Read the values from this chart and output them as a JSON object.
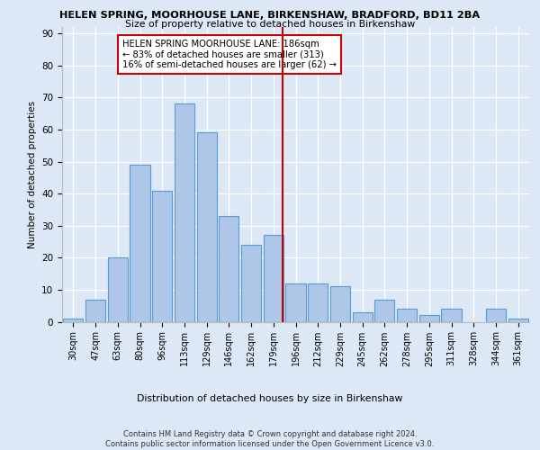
{
  "title1": "HELEN SPRING, MOORHOUSE LANE, BIRKENSHAW, BRADFORD, BD11 2BA",
  "title2": "Size of property relative to detached houses in Birkenshaw",
  "xlabel": "Distribution of detached houses by size in Birkenshaw",
  "ylabel": "Number of detached properties",
  "categories": [
    "30sqm",
    "47sqm",
    "63sqm",
    "80sqm",
    "96sqm",
    "113sqm",
    "129sqm",
    "146sqm",
    "162sqm",
    "179sqm",
    "196sqm",
    "212sqm",
    "229sqm",
    "245sqm",
    "262sqm",
    "278sqm",
    "295sqm",
    "311sqm",
    "328sqm",
    "344sqm",
    "361sqm"
  ],
  "values": [
    1,
    7,
    20,
    49,
    41,
    68,
    59,
    33,
    24,
    27,
    12,
    12,
    11,
    3,
    7,
    4,
    2,
    4,
    0,
    4,
    1
  ],
  "bar_color": "#aec6e8",
  "bar_edge_color": "#5b9bd5",
  "background_color": "#dce8f5",
  "grid_color": "#ffffff",
  "vline_color": "#cc0000",
  "annotation_text": "HELEN SPRING MOORHOUSE LANE: 186sqm\n← 83% of detached houses are smaller (313)\n16% of semi-detached houses are larger (62) →",
  "annotation_box_color": "#cc0000",
  "ylim": [
    0,
    92
  ],
  "yticks": [
    0,
    10,
    20,
    30,
    40,
    50,
    60,
    70,
    80,
    90
  ],
  "footer": "Contains HM Land Registry data © Crown copyright and database right 2024.\nContains public sector information licensed under the Open Government Licence v3.0."
}
